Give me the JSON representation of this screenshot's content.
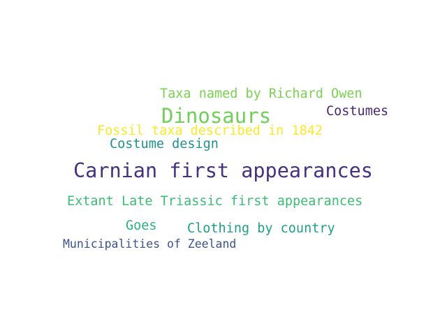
{
  "word_cloud": {
    "words": [
      {
        "text": "Taxa named by Richard Owen",
        "color": "#7ad151"
      },
      {
        "text": "Dinosaurs",
        "color": "#70cf57"
      },
      {
        "text": "Costumes",
        "color": "#482878"
      },
      {
        "text": "Fossil taxa described in 1842",
        "color": "#fde725"
      },
      {
        "text": "Costume design",
        "color": "#21918c"
      },
      {
        "text": "Carnian first appearances",
        "color": "#46327e"
      },
      {
        "text": "Extant Late Triassic first appearances",
        "color": "#3dbc74"
      },
      {
        "text": "Goes",
        "color": "#2db27d"
      },
      {
        "text": "Clothing by country",
        "color": "#1f9e89"
      },
      {
        "text": "Municipalities of Zeeland",
        "color": "#3b528b"
      }
    ]
  }
}
